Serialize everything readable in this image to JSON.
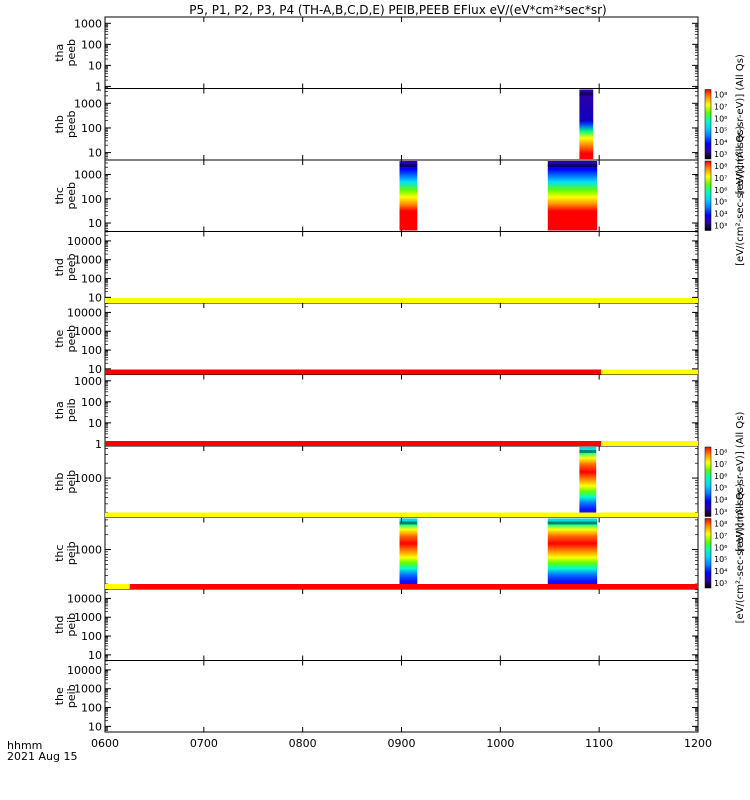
{
  "chart_data": {
    "type": "heatmap",
    "title": "P5, P1, P2, P3, P4 (TH-A,B,C,D,E) PEIB,PEEB EFlux eV/(eV*cm²*sec*sr)",
    "x_axis": {
      "ticks": [
        "0600",
        "0700",
        "0800",
        "0900",
        "1000",
        "1100",
        "1200"
      ],
      "range": [
        "0600",
        "1200"
      ],
      "label_line1": "hhmm",
      "label_line2": "2021 Aug 15"
    },
    "panels": [
      {
        "name": "thaa",
        "ylabel": [
          "tha",
          "peeb"
        ],
        "ticks": [
          "1000",
          "100",
          "10",
          "1"
        ],
        "ymin_exp": -0.1,
        "ymax_exp": 3.3,
        "colorbar": false,
        "blocks": [],
        "ribbon": null
      },
      {
        "name": "thb",
        "ylabel": [
          "thb",
          "peeb"
        ],
        "ticks": [
          "1000",
          "100",
          "10"
        ],
        "ymin_exp": 0.7,
        "ymax_exp": 3.6,
        "colorbar": true,
        "colorbar_label": "[eV/(cm²-sec-sr-eV)] (All Qs)",
        "blocks": [
          {
            "t0": 1080,
            "t1": 1094,
            "style": "thb-peeb"
          }
        ],
        "ribbon": null
      },
      {
        "name": "thc",
        "ylabel": [
          "thc",
          "peeb"
        ],
        "ticks": [
          "1000",
          "100",
          "10"
        ],
        "ymin_exp": 0.65,
        "ymax_exp": 3.6,
        "colorbar": true,
        "colorbar_label": "[eV/(cm²-sec-sr-eV)] (All Qs)",
        "blocks": [
          {
            "t0": 898,
            "t1": 916,
            "style": "thc-peeb"
          },
          {
            "t0": 1048,
            "t1": 1098,
            "style": "thc-peeb"
          }
        ],
        "ribbon": null
      },
      {
        "name": "thd",
        "ylabel": [
          "thd",
          "peeb"
        ],
        "ticks": [
          "10000",
          "1000",
          "100",
          "10"
        ],
        "ymin_exp": 0.7,
        "ymax_exp": 4.5,
        "colorbar": false,
        "blocks": [],
        "ribbon": null
      },
      {
        "name": "the",
        "ylabel": [
          "the",
          "peeb"
        ],
        "ticks": [
          "10000",
          "1000",
          "100",
          "10"
        ],
        "ymin_exp": 0.7,
        "ymax_exp": 4.5,
        "colorbar": false,
        "blocks": [],
        "ribbon": [
          {
            "t0": 600,
            "t1": 1200,
            "color": "#ffff00"
          }
        ]
      },
      {
        "name": "thap",
        "ylabel": [
          "tha",
          "peib"
        ],
        "ticks": [
          "1000",
          "100",
          "10",
          "1"
        ],
        "ymin_exp": -0.1,
        "ymax_exp": 3.3,
        "colorbar": false,
        "blocks": [],
        "ribbon": [
          {
            "t0": 600,
            "t1": 1102,
            "color": "#ff0000"
          },
          {
            "t0": 1102,
            "t1": 1200,
            "color": "#ffff00"
          }
        ]
      },
      {
        "name": "thbp",
        "ylabel": [
          "thb",
          "peib"
        ],
        "ticks": [
          "1000"
        ],
        "ymin_exp": 2.2,
        "ymax_exp": 3.65,
        "colorbar": true,
        "colorbar_label": "[eV/(cm²-sec-sr-eV)] (All Qs)",
        "blocks": [
          {
            "t0": 1080,
            "t1": 1097,
            "style": "peib"
          }
        ],
        "ribbon": [
          {
            "t0": 600,
            "t1": 1102,
            "color": "#ff0000"
          },
          {
            "t0": 1102,
            "t1": 1200,
            "color": "#ffff00"
          }
        ]
      },
      {
        "name": "thcp",
        "ylabel": [
          "thc",
          "peib"
        ],
        "ticks": [
          "1000"
        ],
        "ymin_exp": 2.2,
        "ymax_exp": 3.65,
        "colorbar": true,
        "colorbar_label": "[eV/(cm²-sec-sr-eV)] (All Qs)",
        "blocks": [
          {
            "t0": 898,
            "t1": 916,
            "style": "peib"
          },
          {
            "t0": 1048,
            "t1": 1098,
            "style": "peib"
          }
        ],
        "ribbon": [
          {
            "t0": 600,
            "t1": 1200,
            "color": "#ffff00"
          }
        ]
      },
      {
        "name": "thdp",
        "ylabel": [
          "thd",
          "peib"
        ],
        "ticks": [
          "10000",
          "1000",
          "100",
          "10"
        ],
        "ymin_exp": 0.7,
        "ymax_exp": 4.5,
        "colorbar": false,
        "blocks": [],
        "ribbon": [
          {
            "t0": 600,
            "t1": 625,
            "color": "#ffff00"
          },
          {
            "t0": 625,
            "t1": 1200,
            "color": "#ff0000"
          }
        ]
      },
      {
        "name": "thep",
        "ylabel": [
          "the",
          "peib"
        ],
        "ticks": [
          "10000",
          "1000",
          "100",
          "10"
        ],
        "ymin_exp": 0.7,
        "ymax_exp": 4.5,
        "colorbar": false,
        "blocks": [],
        "ribbon": null
      }
    ],
    "colorbar_ticks": [
      "10⁸",
      "10⁷",
      "10⁶",
      "10⁵",
      "10⁴",
      "10³"
    ],
    "colormap": [
      "#000000",
      "#3000a0",
      "#0000ff",
      "#0080ff",
      "#00d0ff",
      "#00ffb0",
      "#60ff00",
      "#ffff00",
      "#ff9000",
      "#ff0000"
    ]
  }
}
